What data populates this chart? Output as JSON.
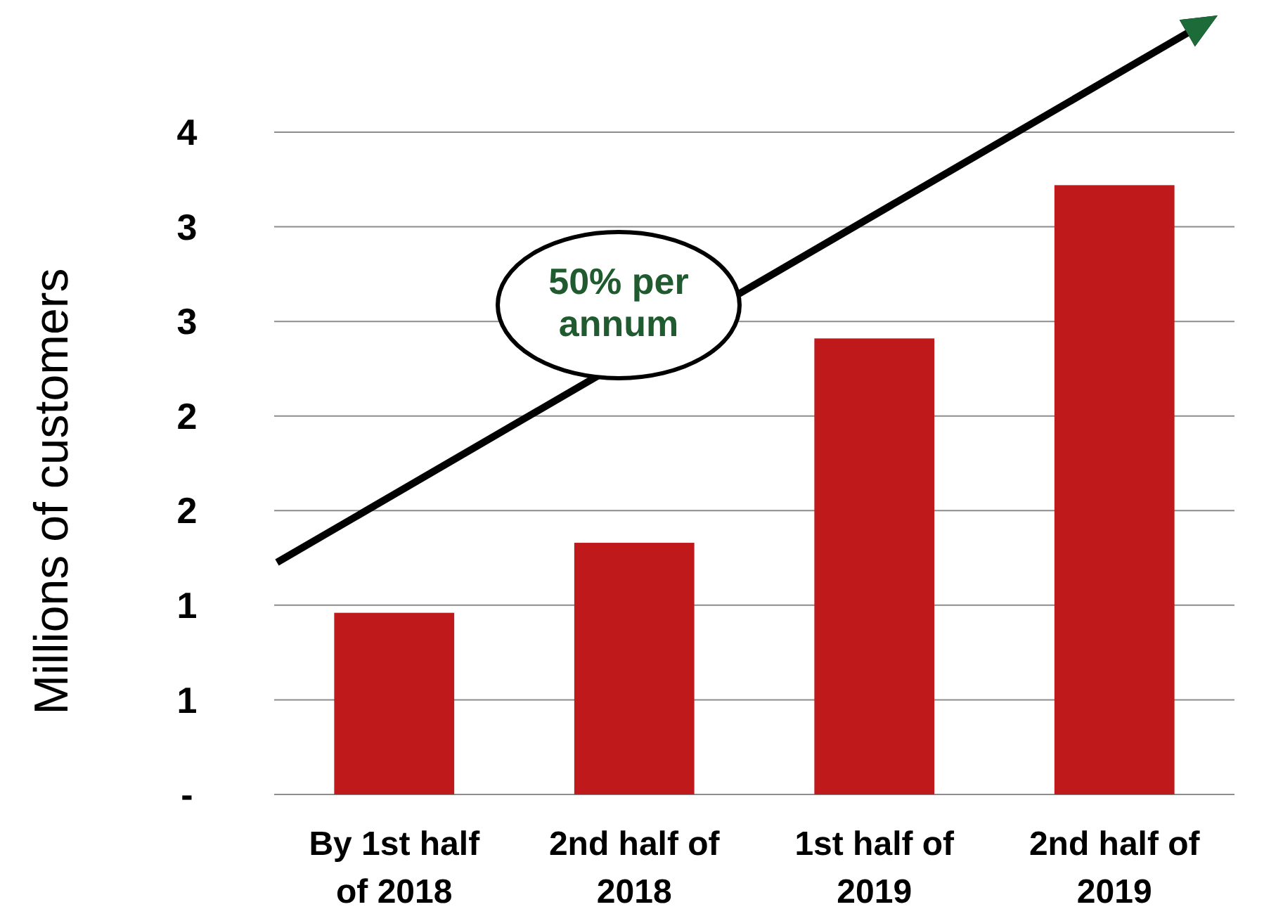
{
  "chart_data": {
    "type": "bar",
    "ylabel": "Millions of customers",
    "categories": [
      "By 1st half of 2018",
      "2nd half of 2018",
      "1st half of 2019",
      "2nd half of 2019"
    ],
    "values": [
      0.96,
      1.33,
      2.41,
      3.22
    ],
    "color": "#c0191c",
    "ylim": [
      0,
      3.5
    ],
    "yticks": [
      {
        "value": 0,
        "label": "-"
      },
      {
        "value": 0.5,
        "label": "1"
      },
      {
        "value": 1,
        "label": "1"
      },
      {
        "value": 1.5,
        "label": "2"
      },
      {
        "value": 2,
        "label": "2"
      },
      {
        "value": 2.5,
        "label": "3"
      },
      {
        "value": 3,
        "label": "3"
      },
      {
        "value": 3.5,
        "label": "4"
      }
    ],
    "grid": "y",
    "annotations": [
      "50% per annum"
    ]
  }
}
